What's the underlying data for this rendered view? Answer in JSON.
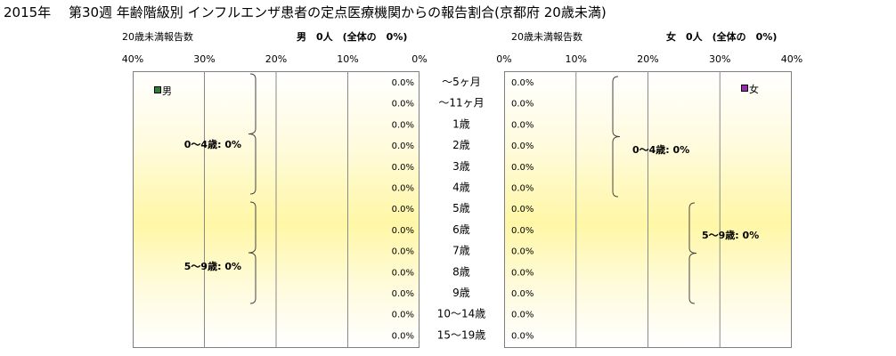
{
  "title": "2015年　 第30週 年齢階級別 インフルエンザ患者の定点医療機関からの報告割合(京都府 20歳未満)",
  "male": {
    "count_label": "20歳未満報告数",
    "header": "男　0人　(全体の　0%)",
    "legend": "男",
    "legend_color": "#2e7d32",
    "ticks": [
      "40%",
      "30%",
      "20%",
      "10%",
      "0%"
    ],
    "values": [
      "0.0%",
      "0.0%",
      "0.0%",
      "0.0%",
      "0.0%",
      "0.0%",
      "0.0%",
      "0.0%",
      "0.0%",
      "0.0%",
      "0.0%",
      "0.0%",
      "0.0%"
    ],
    "groups": [
      {
        "label": "0～4歳: 0%"
      },
      {
        "label": "5～9歳: 0%"
      }
    ]
  },
  "female": {
    "count_label": "20歳未満報告数",
    "header": "女　0人　(全体の　0%)",
    "legend": "女",
    "legend_color": "#9c27b0",
    "ticks": [
      "0%",
      "10%",
      "20%",
      "30%",
      "40%"
    ],
    "values": [
      "0.0%",
      "0.0%",
      "0.0%",
      "0.0%",
      "0.0%",
      "0.0%",
      "0.0%",
      "0.0%",
      "0.0%",
      "0.0%",
      "0.0%",
      "0.0%",
      "0.0%"
    ],
    "groups": [
      {
        "label": "0～4歳: 0%"
      },
      {
        "label": "5～9歳: 0%"
      }
    ]
  },
  "age_groups": [
    "～5ヶ月",
    "～11ヶ月",
    "1歳",
    "2歳",
    "3歳",
    "4歳",
    "5歳",
    "6歳",
    "7歳",
    "8歳",
    "9歳",
    "10～14歳",
    "15～19歳"
  ],
  "chart_data": {
    "type": "bar",
    "orientation": "horizontal-pyramid",
    "categories": [
      "～5ヶ月",
      "～11ヶ月",
      "1歳",
      "2歳",
      "3歳",
      "4歳",
      "5歳",
      "6歳",
      "7歳",
      "8歳",
      "9歳",
      "10～14歳",
      "15～19歳"
    ],
    "series": [
      {
        "name": "男",
        "values": [
          0,
          0,
          0,
          0,
          0,
          0,
          0,
          0,
          0,
          0,
          0,
          0,
          0
        ]
      },
      {
        "name": "女",
        "values": [
          0,
          0,
          0,
          0,
          0,
          0,
          0,
          0,
          0,
          0,
          0,
          0,
          0
        ]
      }
    ],
    "xlim": [
      0,
      40
    ],
    "grid": true,
    "legend": "inside-top"
  }
}
